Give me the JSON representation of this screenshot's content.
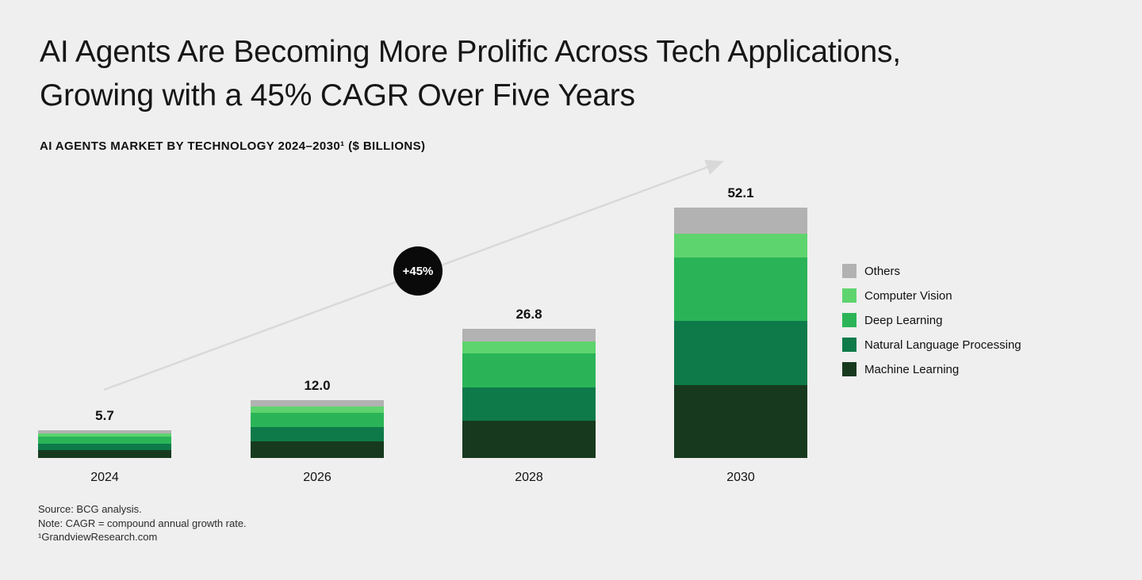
{
  "page": {
    "title_line1": "AI Agents Are Becoming More Prolific Across Tech Applications,",
    "title_line2": "Growing with a 45% CAGR Over Five Years",
    "subtitle": "AI AGENTS MARKET BY TECHNOLOGY 2024–2030¹ ($ BILLIONS)"
  },
  "colors": {
    "background": "#efefef",
    "arrow": "#d9d9d9",
    "badge_bg": "#0a0a0a",
    "badge_text": "#ffffff"
  },
  "chart_data": {
    "type": "bar",
    "stacked": true,
    "title": "AI Agents Market by Technology 2024–2030 ($ Billions)",
    "xlabel": "",
    "ylabel": "$ Billions",
    "ylim": [
      0,
      55
    ],
    "grid": false,
    "legend_position": "right",
    "annotation": "+45%",
    "categories": [
      "2024",
      "2026",
      "2028",
      "2030"
    ],
    "totals": [
      5.7,
      12.0,
      26.8,
      52.1
    ],
    "series": [
      {
        "name": "Machine Learning",
        "color": "#173a1e",
        "values": [
          1.6,
          3.4,
          7.7,
          15.1
        ]
      },
      {
        "name": "Natural Language Processing",
        "color": "#0e7a4a",
        "values": [
          1.4,
          3.0,
          7.0,
          13.5
        ]
      },
      {
        "name": "Deep Learning",
        "color": "#2bb457",
        "values": [
          1.5,
          3.0,
          7.0,
          13.2
        ]
      },
      {
        "name": "Computer Vision",
        "color": "#5ed46e",
        "values": [
          0.6,
          1.3,
          2.6,
          4.9
        ]
      },
      {
        "name": "Others",
        "color": "#b2b2b2",
        "values": [
          0.6,
          1.3,
          2.5,
          5.4
        ]
      }
    ]
  },
  "footnotes": {
    "source": "Source: BCG analysis.",
    "note": "Note: CAGR = compound annual growth rate.",
    "footnote1": "¹GrandviewResearch.com"
  }
}
